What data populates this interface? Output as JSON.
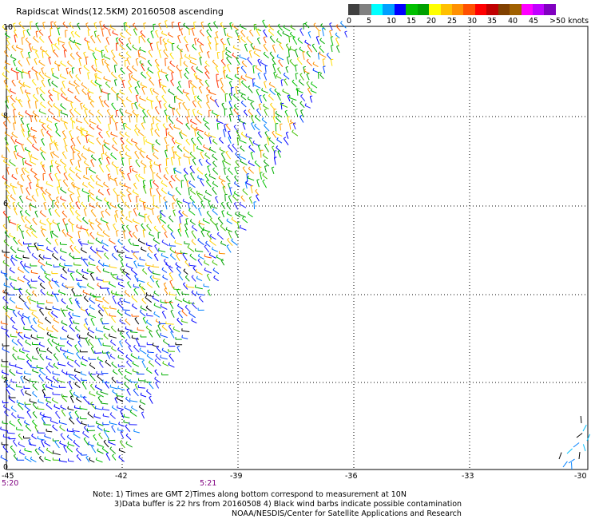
{
  "title": "Rapidscat Winds(12.5KM) 20160508 ascending",
  "color_scale": {
    "labels": [
      "0",
      "5",
      "10",
      "15",
      "20",
      "25",
      "30",
      "35",
      "40",
      "45",
      ">50 knots"
    ],
    "colors": [
      "#404040",
      "#808080",
      "#00ffff",
      "#00a0ff",
      "#0000ff",
      "#00c000",
      "#00a000",
      "#ffff00",
      "#ffc000",
      "#ff9000",
      "#ff5000",
      "#ff0000",
      "#c00000",
      "#804000",
      "#a06000",
      "#ff00ff",
      "#c000ff",
      "#8000c0"
    ]
  },
  "map": {
    "lon_labels": [
      "-45",
      "-42",
      "-39",
      "-36",
      "-33",
      "-30"
    ],
    "lat_labels": [
      "0",
      "2",
      "4",
      "6",
      "8",
      "10"
    ],
    "lon_range": [
      -45,
      -30
    ],
    "lat_range": [
      0,
      10
    ]
  },
  "times": [
    "5:20",
    "5:21"
  ],
  "notes": [
    "Note: 1) Times are GMT 2)Times along bottom correspond to measurement at 10N",
    "3)Data buffer is 22 hrs from 20160508 4) Black wind barbs indicate possible contamination",
    "NOAA/NESDIS/Center for Satellite Applications and Research"
  ]
}
